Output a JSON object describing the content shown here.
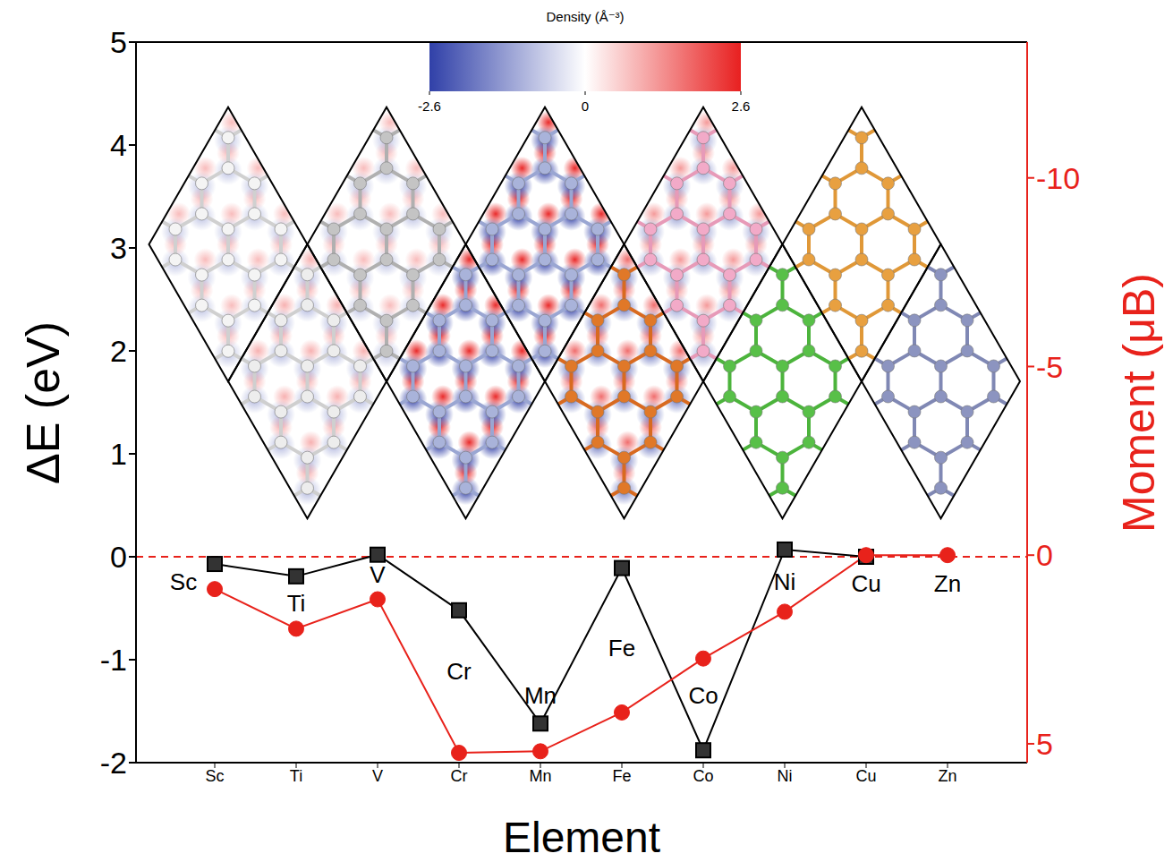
{
  "chart_data": {
    "type": "line",
    "categories": [
      "Sc",
      "Ti",
      "V",
      "Cr",
      "Mn",
      "Fe",
      "Co",
      "Ni",
      "Cu",
      "Zn"
    ],
    "x_label": "Element",
    "y_label": "ΔE (eV)",
    "y2_label": "Moment (μB)",
    "ylim": [
      -2,
      5
    ],
    "yticks": [
      -2,
      -1,
      0,
      1,
      2,
      3,
      4,
      5
    ],
    "y2lim": [
      5.5,
      -13.6
    ],
    "y2ticks": [
      -10,
      -5,
      0,
      5
    ],
    "series": [
      {
        "color": "#000000",
        "marker": "square",
        "values": [
          -0.07,
          -0.19,
          0.02,
          -0.52,
          -1.62,
          -0.11,
          -1.88,
          0.07,
          0.0,
          null
        ]
      },
      {
        "color": "#e8221b",
        "marker": "circle",
        "axis": "y2",
        "values": [
          0.9,
          1.95,
          1.17,
          5.24,
          5.2,
          4.17,
          2.74,
          1.5,
          0,
          0
        ]
      }
    ],
    "reference_lines": [
      {
        "y": 0,
        "color": "#e8221b",
        "line_style": "dashed"
      }
    ],
    "annotations": [
      {
        "text": "Sc",
        "x": "Sc",
        "y": -0.24
      },
      {
        "text": "Ti",
        "x": "Ti",
        "y": -0.45
      },
      {
        "text": "V",
        "x": "V",
        "y": -0.17
      },
      {
        "text": "Cr",
        "x": "Cr",
        "y": -1.11
      },
      {
        "text": "Mn",
        "x": "Mn",
        "y": -1.35
      },
      {
        "text": "Fe",
        "x": "Fe",
        "y": -0.89
      },
      {
        "text": "Co",
        "x": "Co",
        "y": -1.35
      },
      {
        "text": "Ni",
        "x": "Ni",
        "y": -0.24
      },
      {
        "text": "Cu",
        "x": "Cu",
        "y": -0.26
      },
      {
        "text": "Zn",
        "x": "Zn",
        "y": -0.26
      }
    ],
    "colorbar": {
      "label": "Density (Å⁻³)",
      "range": [
        -2.6,
        2.6
      ],
      "ticks": [
        -2.6,
        0,
        2.6
      ]
    }
  }
}
